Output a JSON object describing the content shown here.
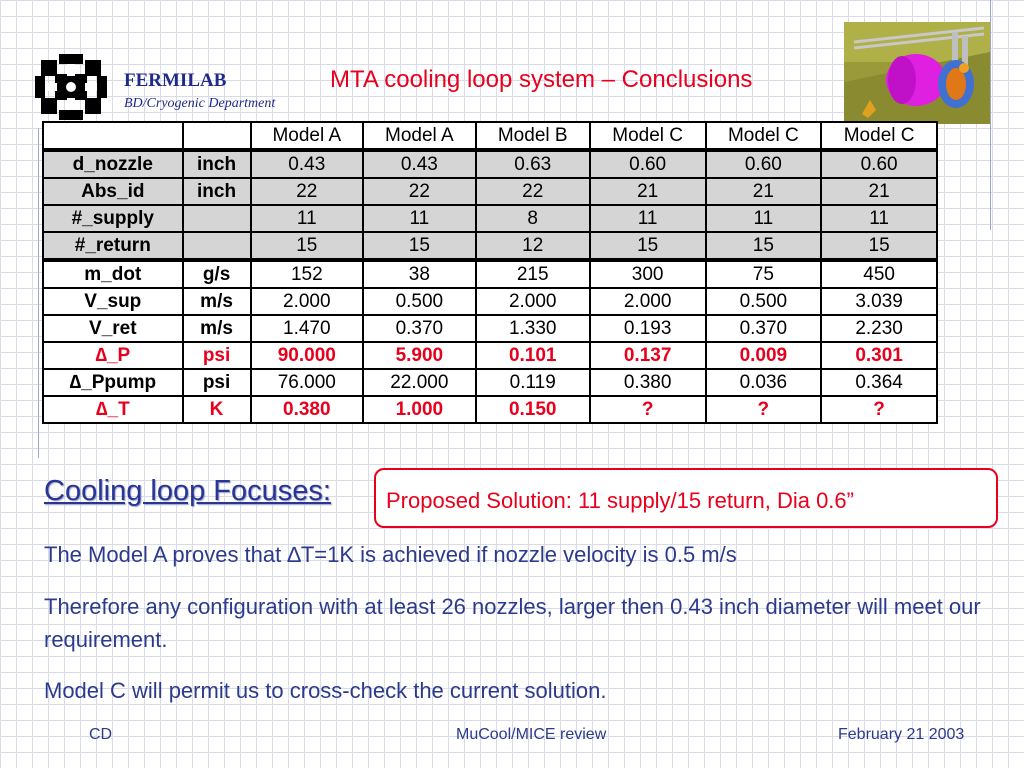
{
  "header": {
    "org_name": "FERMILAB",
    "org_dept": "BD/Cryogenic Department",
    "title": "MTA cooling loop system – Conclusions"
  },
  "table": {
    "columns": [
      "",
      "",
      "Model A",
      "Model A",
      "Model B",
      "Model C",
      "Model C",
      "Model C"
    ],
    "rows": [
      {
        "label": "d_nozzle",
        "unit": "inch",
        "values": [
          "0.43",
          "0.43",
          "0.63",
          "0.60",
          "0.60",
          "0.60"
        ]
      },
      {
        "label": "Abs_id",
        "unit": "inch",
        "values": [
          "22",
          "22",
          "22",
          "21",
          "21",
          "21"
        ]
      },
      {
        "label": "#_supply",
        "unit": "",
        "values": [
          "11",
          "11",
          "8",
          "11",
          "11",
          "11"
        ]
      },
      {
        "label": "#_return",
        "unit": "",
        "values": [
          "15",
          "15",
          "12",
          "15",
          "15",
          "15"
        ]
      },
      {
        "label": "m_dot",
        "unit": "g/s",
        "values": [
          "152",
          "38",
          "215",
          "300",
          "75",
          "450"
        ]
      },
      {
        "label": "V_sup",
        "unit": "m/s",
        "values": [
          "2.000",
          "0.500",
          "2.000",
          "2.000",
          "0.500",
          "3.039"
        ]
      },
      {
        "label": "V_ret",
        "unit": "m/s",
        "values": [
          "1.470",
          "0.370",
          "1.330",
          "0.193",
          "0.370",
          "2.230"
        ]
      },
      {
        "label": "∆_P",
        "unit": "psi",
        "values": [
          "90.000",
          "5.900",
          "0.101",
          "0.137",
          "0.009",
          "0.301"
        ]
      },
      {
        "label": "∆_Ppump",
        "unit": "psi",
        "values": [
          "76.000",
          "22.000",
          "0.119",
          "0.380",
          "0.036",
          "0.364"
        ]
      },
      {
        "label": "∆_T",
        "unit": "K",
        "values": [
          "0.380",
          "1.000",
          "0.150",
          "?",
          "?",
          "?"
        ]
      }
    ]
  },
  "focus_heading": "Cooling loop Focuses:",
  "solution": "Proposed Solution: 11 supply/15 return, Dia 0.6”",
  "paragraphs": [
    "The Model A proves that ∆T=1K is achieved if nozzle velocity is 0.5 m/s",
    "Therefore any configuration with at least 26 nozzles, larger then 0.43 inch diameter will meet our requirement.",
    "Model C will permit us to cross-check the current solution."
  ],
  "footer": {
    "left": "CD",
    "center": "MuCool/MICE review",
    "right": "February 21 2003"
  },
  "colors": {
    "title_red": "#e8001c",
    "text_blue": "#2c3a8c",
    "org_blue": "#1f2a8a"
  },
  "icons": {
    "logo": "fermilab-logo",
    "thumbnail": "cryostat-3d-render"
  }
}
